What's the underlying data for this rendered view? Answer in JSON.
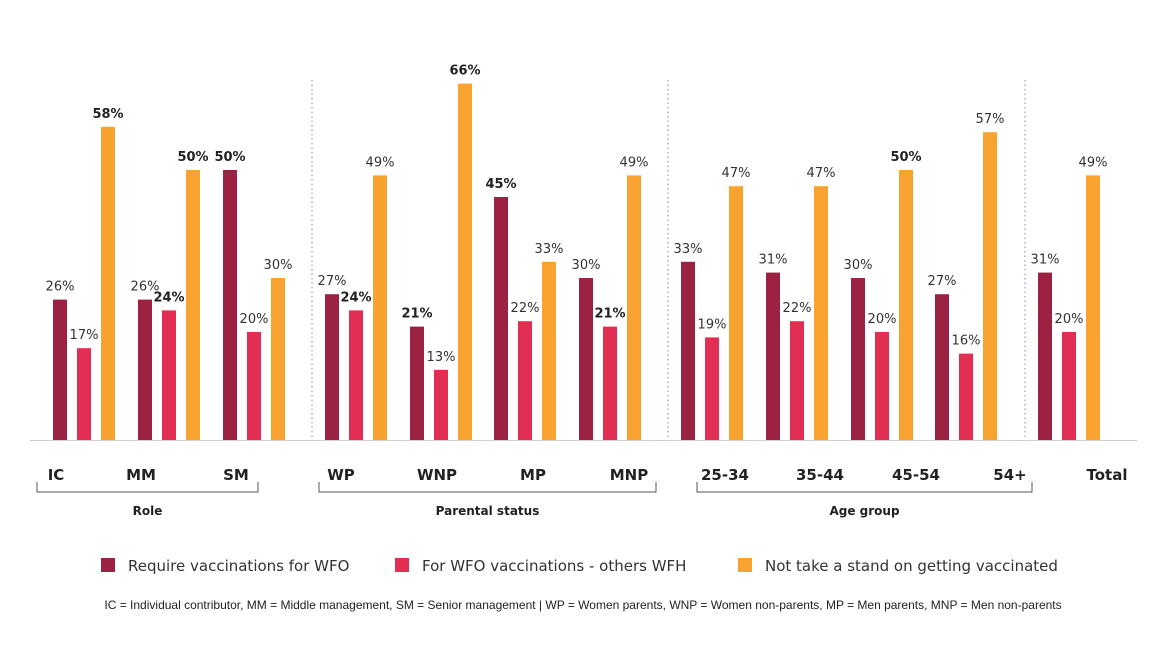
{
  "chart_data": {
    "type": "bar",
    "ylim": [
      0,
      70
    ],
    "series": [
      {
        "name": "Require vaccinations for WFO",
        "color": "#9b2242"
      },
      {
        "name": "For WFO vaccinations - others WFH",
        "color": "#e22e52"
      },
      {
        "name": "Not take a stand on getting vaccinated",
        "color": "#f8a22f"
      }
    ],
    "groups": [
      {
        "name": "Role",
        "categories": [
          {
            "label": "IC",
            "values": [
              26,
              17,
              58
            ]
          },
          {
            "label": "MM",
            "values": [
              26,
              24,
              50
            ]
          },
          {
            "label": "SM",
            "values": [
              50,
              20,
              30
            ]
          }
        ]
      },
      {
        "name": "Parental status",
        "categories": [
          {
            "label": "WP",
            "values": [
              27,
              24,
              49
            ]
          },
          {
            "label": "WNP",
            "values": [
              21,
              13,
              66
            ]
          },
          {
            "label": "MP",
            "values": [
              45,
              22,
              33
            ]
          },
          {
            "label": "MNP",
            "values": [
              30,
              21,
              49
            ]
          }
        ]
      },
      {
        "name": "Age group",
        "categories": [
          {
            "label": "25-34",
            "values": [
              33,
              19,
              47
            ]
          },
          {
            "label": "35-44",
            "values": [
              31,
              22,
              47
            ]
          },
          {
            "label": "45-54",
            "values": [
              30,
              20,
              50
            ]
          },
          {
            "label": "54+",
            "values": [
              27,
              16,
              57
            ]
          }
        ]
      },
      {
        "name": "",
        "categories": [
          {
            "label": "Total",
            "values": [
              31,
              20,
              49
            ]
          }
        ]
      }
    ],
    "bold_labels": [
      "58%",
      "24%",
      "50%",
      "66%",
      "45%",
      "21%"
    ],
    "footnote": "IC = Individual contributor,  MM = Middle management, SM = Senior management | WP = Women parents, WNP = Women non-parents, MP = Men parents, MNP = Men non-parents"
  }
}
